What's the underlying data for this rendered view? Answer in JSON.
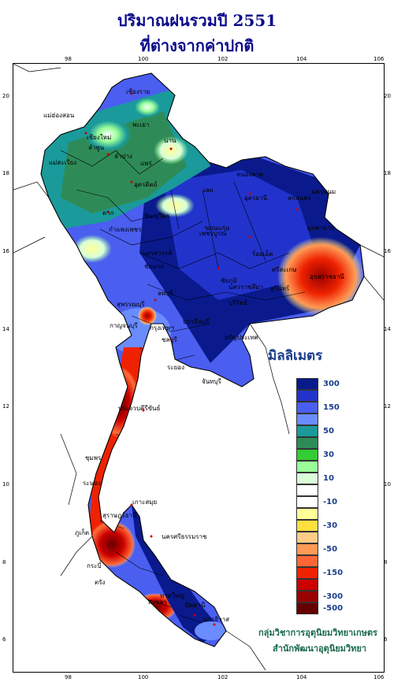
{
  "title_line1": "ปริมาณฝนรวมปี 2551",
  "title_line2": "ที่ต่างจากค่าปกติ",
  "lon_ticks": [
    "98",
    "100",
    "102",
    "104",
    "106"
  ],
  "lat_ticks": [
    "20",
    "18",
    "16",
    "14",
    "12",
    "10",
    "8",
    "6"
  ],
  "legend": {
    "title": "มิลลิเมตร",
    "items": [
      {
        "label": "300",
        "color": "#0a1a8c"
      },
      {
        "label": "",
        "color": "#2233cc"
      },
      {
        "label": "150",
        "color": "#4a5ef0"
      },
      {
        "label": "",
        "color": "#6a8cff"
      },
      {
        "label": "50",
        "color": "#1a9a9a"
      },
      {
        "label": "",
        "color": "#2e8b57"
      },
      {
        "label": "30",
        "color": "#33cc33"
      },
      {
        "label": "",
        "color": "#99ff99"
      },
      {
        "label": "10",
        "color": "#d9ffd9"
      },
      {
        "label": "",
        "color": "#ffffff"
      },
      {
        "label": "-10",
        "color": "#ffffff"
      },
      {
        "label": "",
        "color": "#ffff99"
      },
      {
        "label": "-30",
        "color": "#ffe040"
      },
      {
        "label": "",
        "color": "#ffcc88"
      },
      {
        "label": "-50",
        "color": "#ff9955"
      },
      {
        "label": "",
        "color": "#ff6633"
      },
      {
        "label": "-150",
        "color": "#ee2200"
      },
      {
        "label": "",
        "color": "#cc0000"
      },
      {
        "label": "-300",
        "color": "#990000"
      },
      {
        "label": "-500",
        "color": "#660000"
      }
    ]
  },
  "credit_line1": "กลุ่มวิชาการอุตุนิยมวิทยาเกษตร",
  "credit_line2": "สำนักพัฒนาอุตุนิยมวิทยา",
  "places": [
    "เชียงราย",
    "แม่ฮ่องสอน",
    "พะเยา",
    "เชียงใหม่",
    "ลำพูน",
    "ลำปาง",
    "น่าน",
    "แพร่",
    "แม่สะเรียง",
    "อุตรดิตถ์",
    "ตาก",
    "หนองคาย",
    "นครพนม",
    "เลย",
    "อุดรธานี",
    "สกลนคร",
    "พิษณุโลก",
    "ขอนแก่น",
    "มุกดาหาร",
    "เพชรบูรณ์",
    "กำแพงเพชร",
    "ร้อยเอ็ด",
    "อุบลราชธานี",
    "นครสวรรค์",
    "ชัยภูมิ",
    "สุรินทร์",
    "ชัยนาท",
    "นครราชสีมา",
    "ศรีสะเกษ",
    "ลพบุรี",
    "บุรีรัมย์",
    "กาญจนบุรี",
    "สุพรรณบุรี",
    "กรุงเทพฯ",
    "ปราจีนบุรี",
    "อรัญประเทศ",
    "ชลบุรี",
    "ระยอง",
    "จันทบุรี",
    "ประจวบคีรีขันธ์",
    "ชุมพร",
    "ระนอง",
    "เกาะสมุย",
    "สุราษฎร์ธานี",
    "นครศรีธรรมราช",
    "ภูเก็ต",
    "กระบี่",
    "ตรัง",
    "สงขลา",
    "หาดใหญ่",
    "ปัตตานี",
    "นราธิวาส"
  ]
}
